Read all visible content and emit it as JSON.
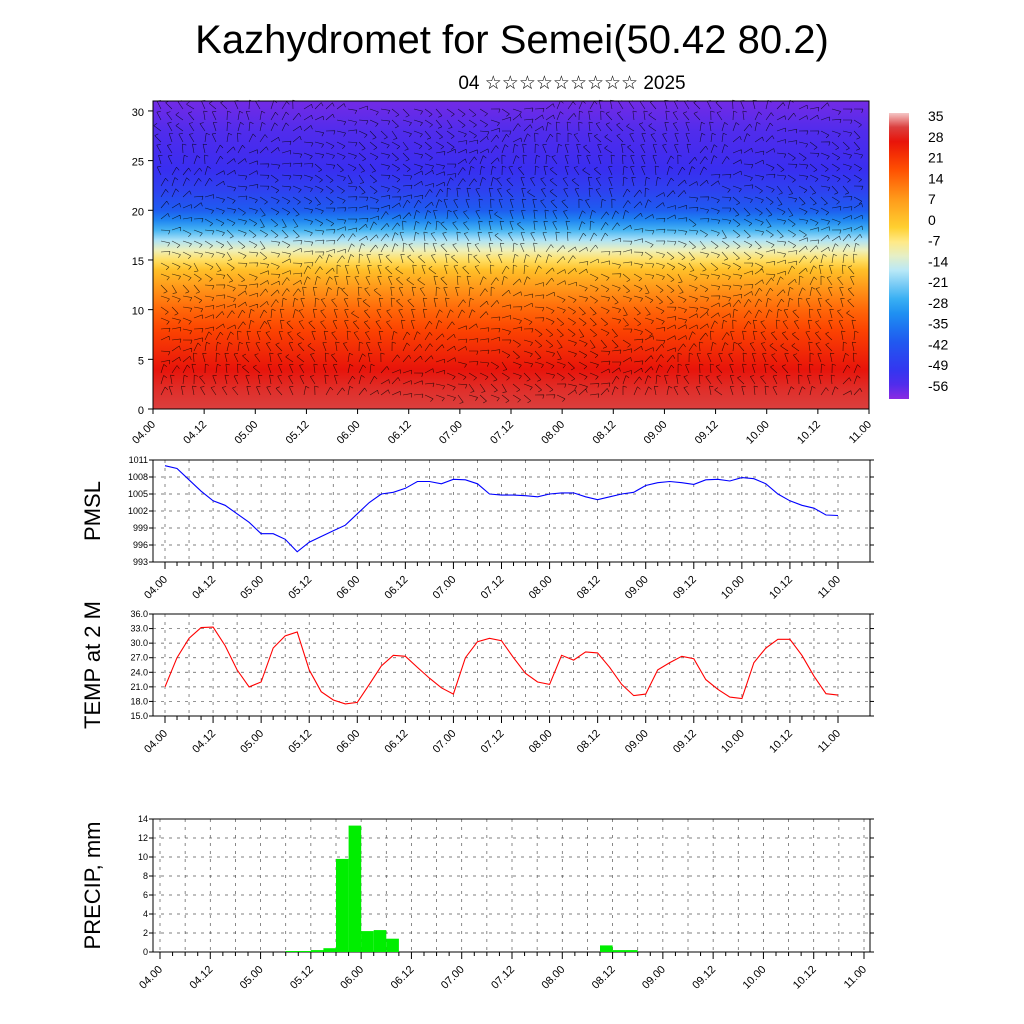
{
  "header": {
    "title": "Kazhydromet for Semei(50.42 80.2)",
    "subtitle": "04 ☆☆☆☆☆☆☆☆☆ 2025"
  },
  "chart_data": [
    {
      "type": "heatmap",
      "title": "",
      "xlabel": "",
      "ylabel": "",
      "x_ticks": [
        "04.00",
        "04.12",
        "05.00",
        "05.12",
        "06.00",
        "06.12",
        "07.00",
        "07.12",
        "08.00",
        "08.12",
        "09.00",
        "09.12",
        "10.00",
        "10.12",
        "11.00"
      ],
      "y_ticks": [
        0,
        5,
        10,
        15,
        20,
        25,
        30
      ],
      "ylim": [
        0,
        31
      ],
      "colorbar_ticks": [
        35,
        28,
        21,
        14,
        7,
        0,
        -7,
        -14,
        -21,
        -28,
        -35,
        -42,
        -49,
        -56
      ],
      "colorbar_range": [
        -63,
        37
      ],
      "profile_levels": [
        0,
        2,
        4,
        6,
        8,
        10,
        12,
        14,
        15,
        16,
        17,
        18,
        19,
        20,
        22,
        24,
        26,
        28,
        30,
        31
      ],
      "profile_values": [
        32,
        30,
        27,
        23,
        19,
        14,
        8,
        0,
        -6,
        -12,
        -19,
        -27,
        -35,
        -42,
        -50,
        -55,
        -57,
        -58,
        -60,
        -61
      ],
      "overlay": "wind barbs"
    },
    {
      "type": "line",
      "ylabel": "PMSL",
      "ylim": [
        993,
        1011
      ],
      "y_ticks": [
        993,
        996,
        999,
        1002,
        1005,
        1008,
        1011
      ],
      "x_ticks": [
        "04.00",
        "04.12",
        "05.00",
        "05.12",
        "06.00",
        "06.12",
        "07.00",
        "07.12",
        "08.00",
        "08.12",
        "09.00",
        "09.12",
        "10.00",
        "10.12",
        "11.00"
      ],
      "x_step_hours": 3,
      "series": [
        {
          "color": "#0000ff",
          "values": [
            1010,
            1009.5,
            1007.5,
            1005.5,
            1003.8,
            1003,
            1001.5,
            1000,
            998,
            998,
            997,
            994.8,
            996.5,
            997.5,
            998.5,
            999.5,
            1001.5,
            1003.5,
            1005,
            1005.3,
            1006,
            1007.2,
            1007.2,
            1006.8,
            1007.6,
            1007.5,
            1006.8,
            1005,
            1004.8,
            1004.8,
            1004.7,
            1004.5,
            1005,
            1005.2,
            1005.2,
            1004.5,
            1004,
            1004.5,
            1005,
            1005.3,
            1006.5,
            1007,
            1007.2,
            1007,
            1006.7,
            1007.5,
            1007.6,
            1007.3,
            1007.9,
            1007.7,
            1006.8,
            1005,
            1003.8,
            1003,
            1002.5,
            1001.3,
            1001.2
          ]
        }
      ]
    },
    {
      "type": "line",
      "ylabel": "TEMP at 2 M",
      "ylim": [
        15.0,
        36.0
      ],
      "y_ticks": [
        "15.0",
        "18.0",
        "21.0",
        "24.0",
        "27.0",
        "30.0",
        "33.0",
        "36.0"
      ],
      "x_ticks": [
        "04.00",
        "04.12",
        "05.00",
        "05.12",
        "06.00",
        "06.12",
        "07.00",
        "07.12",
        "08.00",
        "08.12",
        "09.00",
        "09.12",
        "10.00",
        "10.12",
        "11.00"
      ],
      "x_step_hours": 3,
      "series": [
        {
          "color": "#ff0000",
          "values": [
            21,
            27,
            31,
            33.2,
            33.3,
            29.5,
            24.5,
            21,
            22,
            29,
            31.5,
            32.3,
            24.5,
            20,
            18.3,
            17.5,
            17.8,
            21.5,
            25.3,
            27.5,
            27.3,
            25,
            22.8,
            20.8,
            19.5,
            27,
            30.3,
            31,
            30.5,
            27,
            23.8,
            22,
            21.5,
            27.5,
            26.5,
            28.2,
            28,
            25,
            21.5,
            19.2,
            19.5,
            24.5,
            26,
            27.3,
            26.8,
            22.5,
            20.5,
            18.9,
            18.6,
            26,
            29,
            30.8,
            30.8,
            27.5,
            23.2,
            19.6,
            19.3
          ]
        }
      ]
    },
    {
      "type": "bar",
      "ylabel": "PRECIP, mm",
      "ylim": [
        0,
        14
      ],
      "y_ticks": [
        0,
        2,
        4,
        6,
        8,
        10,
        12,
        14
      ],
      "x_ticks": [
        "04.00",
        "04.12",
        "05.00",
        "05.12",
        "06.00",
        "06.12",
        "07.00",
        "07.12",
        "08.00",
        "08.12",
        "09.00",
        "09.12",
        "10.00",
        "10.12",
        "11.00"
      ],
      "x_step_hours": 3,
      "color": "#00ee00",
      "values": [
        0,
        0,
        0,
        0,
        0,
        0,
        0,
        0,
        0,
        0,
        0.1,
        0.1,
        0.2,
        0.4,
        9.8,
        13.3,
        2.2,
        2.3,
        1.4,
        0,
        0,
        0,
        0,
        0,
        0,
        0,
        0,
        0,
        0,
        0,
        0,
        0,
        0,
        0,
        0,
        0.7,
        0.2,
        0.2,
        0,
        0,
        0,
        0,
        0,
        0,
        0,
        0,
        0,
        0,
        0,
        0,
        0,
        0,
        0,
        0,
        0,
        0
      ]
    }
  ]
}
